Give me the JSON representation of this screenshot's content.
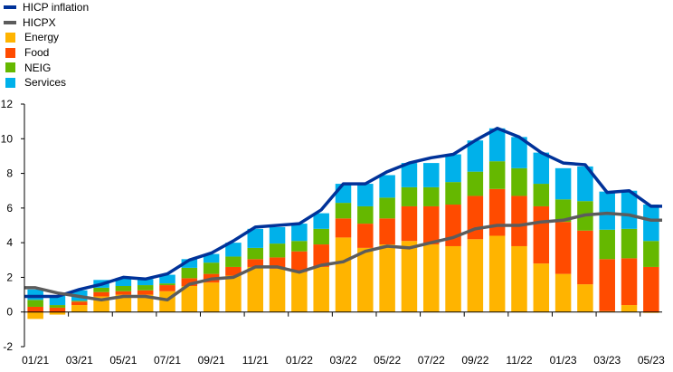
{
  "chart_data": {
    "type": "bar",
    "stacked": true,
    "categories": [
      "01/21",
      "02/21",
      "03/21",
      "04/21",
      "05/21",
      "06/21",
      "07/21",
      "08/21",
      "09/21",
      "10/21",
      "11/21",
      "12/21",
      "01/22",
      "02/22",
      "03/22",
      "04/22",
      "05/22",
      "06/22",
      "07/22",
      "08/22",
      "09/22",
      "10/22",
      "11/22",
      "12/22",
      "01/23",
      "02/23",
      "03/23",
      "04/23",
      "05/23"
    ],
    "x_tick_labels": [
      "01/21",
      "03/21",
      "05/21",
      "07/21",
      "09/21",
      "11/21",
      "01/22",
      "03/22",
      "05/22",
      "07/22",
      "09/22",
      "11/22",
      "01/23",
      "03/23",
      "05/23"
    ],
    "ylim": [
      -2,
      12
    ],
    "yticks": [
      -2,
      0,
      2,
      4,
      6,
      8,
      10,
      12
    ],
    "series": [
      {
        "name": "Energy",
        "color": "#ffb400",
        "values": [
          -0.4,
          -0.15,
          0.4,
          0.9,
          1.0,
          1.0,
          1.2,
          1.5,
          1.7,
          2.1,
          2.6,
          2.5,
          2.3,
          2.6,
          4.3,
          3.7,
          3.9,
          4.1,
          3.9,
          3.8,
          4.2,
          4.4,
          3.8,
          2.8,
          2.2,
          1.6,
          0.05,
          0.4,
          -0.05
        ]
      },
      {
        "name": "Food",
        "color": "#ff4b00",
        "values": [
          0.3,
          0.25,
          0.2,
          0.25,
          0.2,
          0.25,
          0.35,
          0.45,
          0.5,
          0.5,
          0.45,
          0.65,
          1.2,
          1.3,
          1.1,
          1.4,
          1.5,
          2.0,
          2.2,
          2.4,
          2.5,
          2.7,
          2.9,
          3.3,
          3.0,
          3.1,
          3.0,
          2.7,
          2.6
        ]
      },
      {
        "name": "NEIG",
        "color": "#65b800",
        "values": [
          0.4,
          0.15,
          0.05,
          0.25,
          0.3,
          0.3,
          0.1,
          0.6,
          0.65,
          0.6,
          0.65,
          0.8,
          0.6,
          0.9,
          0.9,
          1.0,
          1.2,
          1.1,
          1.1,
          1.3,
          1.4,
          1.6,
          1.6,
          1.3,
          1.3,
          1.7,
          1.7,
          1.7,
          1.5
        ]
      },
      {
        "name": "Services",
        "color": "#00b1ea",
        "values": [
          0.6,
          0.55,
          0.6,
          0.45,
          0.45,
          0.35,
          0.5,
          0.5,
          0.5,
          0.8,
          1.1,
          0.95,
          1.0,
          0.9,
          1.1,
          1.3,
          1.3,
          1.4,
          1.4,
          1.6,
          1.8,
          1.9,
          1.8,
          1.8,
          1.8,
          2.0,
          2.2,
          2.2,
          2.1
        ]
      }
    ],
    "lines": [
      {
        "name": "HICP inflation",
        "color": "#003299",
        "values": [
          0.9,
          0.9,
          1.3,
          1.6,
          2.0,
          1.9,
          2.2,
          3.0,
          3.4,
          4.1,
          4.9,
          5.0,
          5.1,
          5.9,
          7.4,
          7.4,
          8.1,
          8.6,
          8.9,
          9.1,
          9.9,
          10.6,
          10.1,
          9.2,
          8.6,
          8.5,
          6.9,
          7.0,
          6.1
        ]
      },
      {
        "name": "HICPX",
        "color": "#5c5c5c",
        "values": [
          1.4,
          1.1,
          0.9,
          0.7,
          0.9,
          0.9,
          0.7,
          1.6,
          1.9,
          2.0,
          2.6,
          2.6,
          2.3,
          2.7,
          2.9,
          3.5,
          3.8,
          3.7,
          4.0,
          4.3,
          4.8,
          5.0,
          5.0,
          5.2,
          5.3,
          5.6,
          5.7,
          5.6,
          5.3
        ]
      }
    ],
    "legend": {
      "placement": "top-left",
      "entries": [
        {
          "label": "HICP inflation",
          "kind": "line",
          "color": "#003299"
        },
        {
          "label": "HICPX",
          "kind": "line",
          "color": "#5c5c5c"
        },
        {
          "label": "Energy",
          "kind": "box",
          "color": "#ffb400"
        },
        {
          "label": "Food",
          "kind": "box",
          "color": "#ff4b00"
        },
        {
          "label": "NEIG",
          "kind": "box",
          "color": "#65b800"
        },
        {
          "label": "Services",
          "kind": "box",
          "color": "#00b1ea"
        }
      ]
    },
    "grid": false
  }
}
